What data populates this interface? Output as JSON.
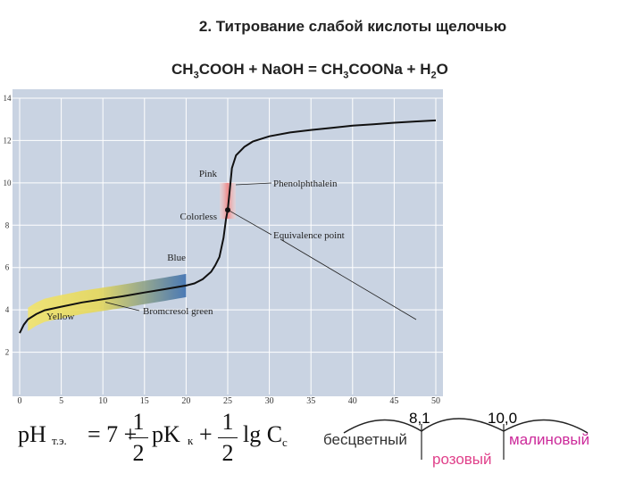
{
  "heading": {
    "title": "2. Титрование слабой кислоты щелочью",
    "eq_ch": "CH",
    "eq_3": "3",
    "eq_mid1": "COOH + NaOH = CH",
    "eq_3b": "3",
    "eq_mid2": "COONa + H",
    "eq_2": "2",
    "eq_o": "O"
  },
  "chart_data": {
    "type": "line",
    "x_ticks": [
      "0",
      "5",
      "10",
      "15",
      "20",
      "25",
      "30",
      "35",
      "40",
      "45",
      "50"
    ],
    "y_ticks": [
      "2",
      "4",
      "6",
      "8",
      "10",
      "12",
      "14"
    ],
    "xlim": [
      0,
      50
    ],
    "ylim": [
      0,
      14
    ],
    "series": [
      {
        "x": [
          0,
          0.5,
          1,
          2,
          3,
          5,
          7.5,
          10,
          12.5,
          15,
          17.5,
          20,
          21,
          22,
          23,
          23.5,
          24,
          24.5,
          24.8,
          25,
          25.2,
          25.5,
          26,
          27,
          28,
          30,
          32.5,
          35,
          37.5,
          40,
          42.5,
          45,
          47.5,
          50
        ],
        "y": [
          2.9,
          3.3,
          3.55,
          3.8,
          3.98,
          4.15,
          4.35,
          4.5,
          4.65,
          4.82,
          4.98,
          5.15,
          5.25,
          5.45,
          5.8,
          6.1,
          6.5,
          7.4,
          8.3,
          8.72,
          9.5,
          10.7,
          11.3,
          11.7,
          11.95,
          12.2,
          12.38,
          12.5,
          12.6,
          12.7,
          12.77,
          12.84,
          12.9,
          12.95
        ]
      }
    ],
    "indicator_bands": [
      {
        "name": "Bromcresol green",
        "from_x": 1,
        "to_x": 20,
        "color_start": "#f2e46a",
        "color_end": "#3c6fb0"
      },
      {
        "name": "Phenolphthalein",
        "y_from": 8.3,
        "y_to": 10.0,
        "color": "#ee8a8a"
      }
    ],
    "equivalence_point": {
      "x": 25,
      "y": 8.72
    },
    "annotations": [
      "Pink",
      "Colorless",
      "Blue",
      "Yellow",
      "Phenolphthalein",
      "Equivalence point",
      "Bromcresol green"
    ],
    "grid": true
  },
  "formula": {
    "ph": "pH",
    "sub_te": "т.э.",
    "eq7": "= 7 +",
    "one1": "1",
    "two1": "2",
    "pk": "pK",
    "sub_k": "к",
    "plus": "+",
    "one2": "1",
    "two2": "2",
    "lg": "lg C",
    "sub_c": "с"
  },
  "scale": {
    "v1": "8,1",
    "v2": "10,0",
    "left": "бесцветный",
    "middle": "розовый",
    "right": "малиновый",
    "left_color": "#333333",
    "pink_color": "#e0408a",
    "right_color": "#cc2a9a"
  }
}
